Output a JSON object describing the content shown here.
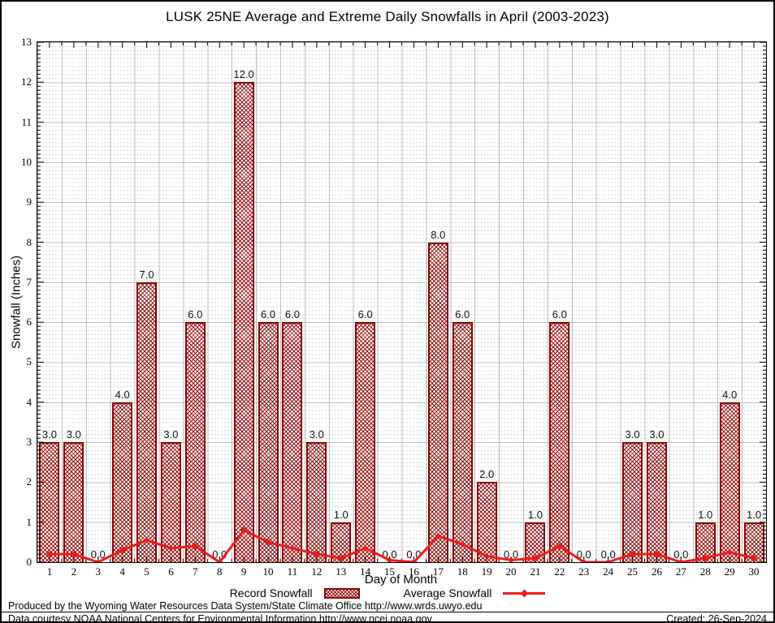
{
  "title": "LUSK 25NE Average and Extreme Daily Snowfalls in April (2003-2023)",
  "legend": {
    "record_label": "Record Snowfall",
    "average_label": "Average Snowfall"
  },
  "footer": {
    "line1": "Produced by the Wyoming Water Resources Data System/State Climate Office http://www.wrds.uwyo.edu",
    "line2": "Data courtesy NOAA National Centers for Environmental Information http://www.ncei.noaa.gov",
    "created": "Created: 26-Sep-2024"
  },
  "colors": {
    "bar_border": "#8b0000",
    "bar_hatch": "#960a0a",
    "line": "#ee1c1c",
    "grid_major": "#bdbdbd",
    "grid_minor": "#d8d8d8",
    "plot_border": "#000000"
  },
  "chart_data": {
    "type": "bar",
    "title": "LUSK 25NE Average and Extreme Daily Snowfalls in April (2003-2023)",
    "xlabel": "Day of Month",
    "ylabel": "Snowfall (Inches)",
    "ylim": [
      0,
      13
    ],
    "ytick_step": 1,
    "grid": "major solid, minor dotted (0.1 in)",
    "legend_position": "bottom center",
    "categories": [
      1,
      2,
      3,
      4,
      5,
      6,
      7,
      8,
      9,
      10,
      11,
      12,
      13,
      14,
      15,
      16,
      17,
      18,
      19,
      20,
      21,
      22,
      23,
      24,
      25,
      26,
      27,
      28,
      29,
      30
    ],
    "series": [
      {
        "name": "Record Snowfall",
        "type": "bar",
        "values": [
          3.0,
          3.0,
          0.0,
          4.0,
          7.0,
          3.0,
          6.0,
          0.0,
          12.0,
          6.0,
          6.0,
          3.0,
          1.0,
          6.0,
          0.0,
          0.0,
          8.0,
          6.0,
          2.0,
          0.0,
          1.0,
          6.0,
          0.0,
          0.0,
          3.0,
          3.0,
          0.0,
          1.0,
          4.0,
          1.0
        ],
        "labels": [
          "3.0",
          "3.0",
          "0.0",
          "4.0",
          "7.0",
          "3.0",
          "6.0",
          "0.0",
          "12.0",
          "6.0",
          "6.0",
          "3.0",
          "1.0",
          "6.0",
          "0.0",
          "0.0",
          "8.0",
          "6.0",
          "2.0",
          "0.0",
          "1.0",
          "6.0",
          "0.0",
          "0.0",
          "3.0",
          "3.0",
          "0.0",
          "1.0",
          "4.0",
          "1.0"
        ]
      },
      {
        "name": "Average Snowfall",
        "type": "line",
        "values": [
          0.2,
          0.2,
          0.0,
          0.3,
          0.55,
          0.35,
          0.4,
          0.0,
          0.8,
          0.5,
          0.35,
          0.2,
          0.1,
          0.35,
          0.05,
          0.0,
          0.65,
          0.45,
          0.15,
          0.05,
          0.1,
          0.4,
          0.0,
          0.0,
          0.2,
          0.2,
          0.0,
          0.1,
          0.25,
          0.1
        ]
      }
    ]
  }
}
